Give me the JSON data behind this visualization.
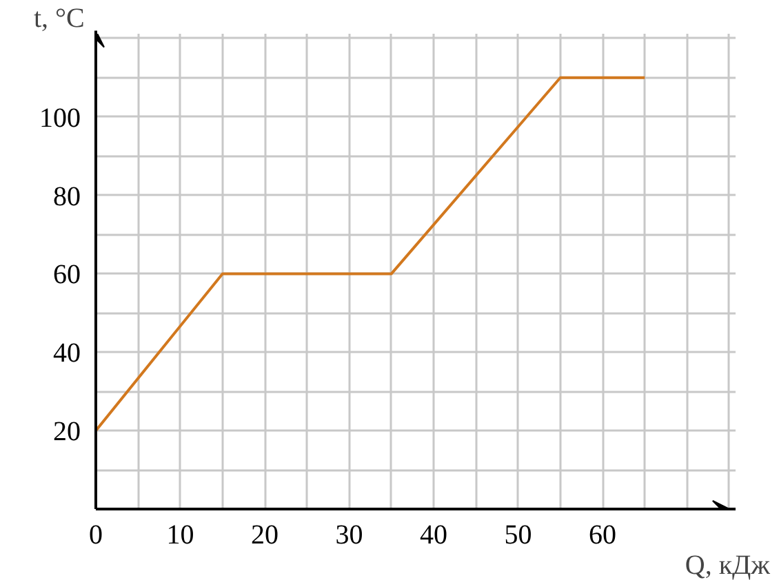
{
  "chart_data": {
    "type": "line",
    "xlabel": "Q, кДж",
    "ylabel": "t, °C",
    "x": [
      0,
      15,
      35,
      55,
      65
    ],
    "series": [
      {
        "color": "#d2781e",
        "values": [
          20,
          60,
          60,
          110,
          110
        ]
      }
    ],
    "xlim": [
      0,
      75
    ],
    "ylim": [
      0,
      120
    ],
    "xticks": [
      0,
      {
        "value": 5,
        "label": null
      },
      10,
      {
        "value": 15,
        "label": null
      },
      20,
      {
        "value": 25,
        "label": null
      },
      30,
      {
        "value": 35,
        "label": null
      },
      40,
      {
        "value": 45,
        "label": null
      },
      50,
      {
        "value": 55,
        "label": null
      },
      60,
      {
        "value": 65,
        "label": null
      },
      {
        "value": 70,
        "label": null
      },
      {
        "value": 75,
        "label": null
      }
    ],
    "yticks": [
      {
        "value": 10,
        "label": null
      },
      20,
      {
        "value": 30,
        "label": null
      },
      40,
      {
        "value": 50,
        "label": null
      },
      60,
      {
        "value": 70,
        "label": null
      },
      80,
      {
        "value": 90,
        "label": null
      },
      100,
      {
        "value": 110,
        "label": null
      },
      {
        "value": 120,
        "label": null
      }
    ],
    "grid": true,
    "marker": "none",
    "line_style": "solid"
  }
}
